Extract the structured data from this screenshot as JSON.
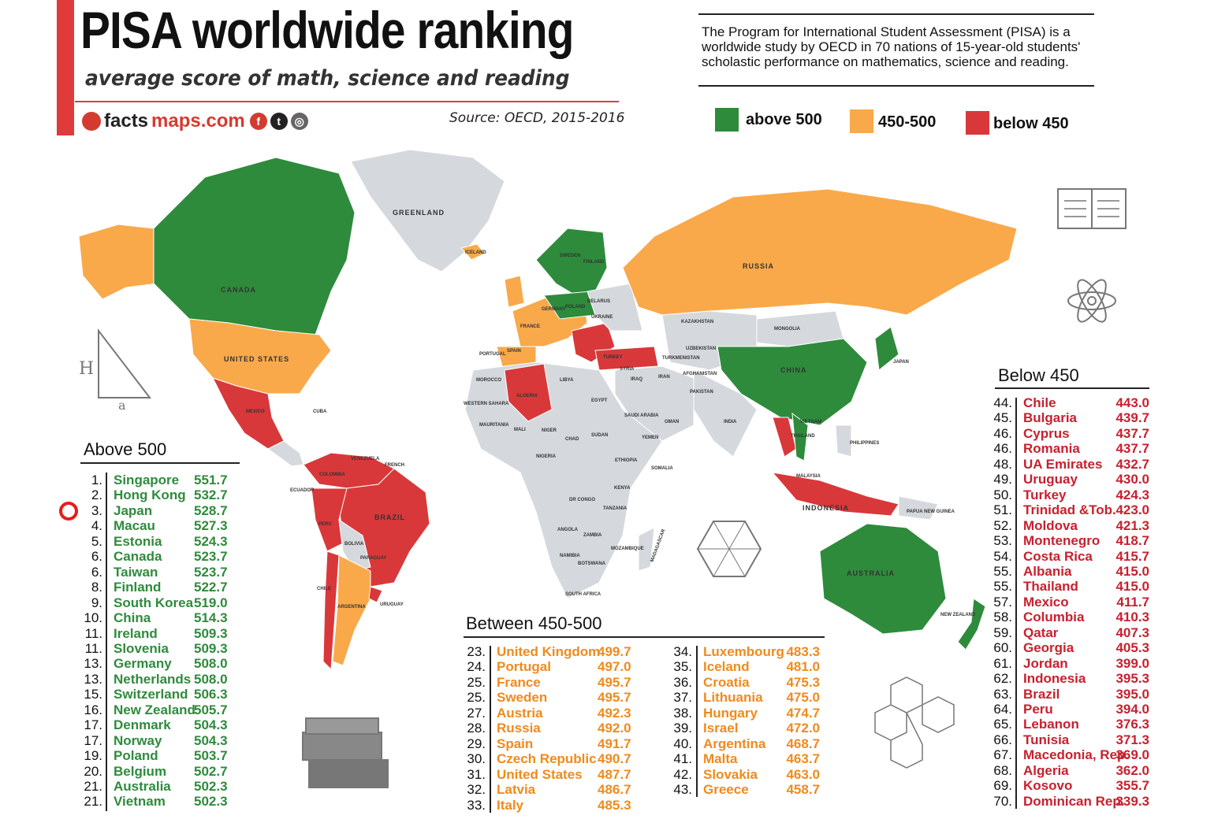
{
  "header": {
    "title": "PISA worldwide ranking",
    "subtitle": "average score of math, science and reading",
    "brand_a": "facts",
    "brand_b": "maps.com",
    "source": "Source: OECD, 2015-2016",
    "social_icons": [
      "facebook-icon",
      "twitter-icon",
      "instagram-icon"
    ]
  },
  "description": "The Program for International Student Assessment (PISA) is a worldwide study by OECD in 70 nations of 15-year-old students' scholastic performance on mathematics, science and reading.",
  "legend": [
    {
      "label": "above 500",
      "color": "#2e8b3c"
    },
    {
      "label": "450-500",
      "color": "#f9a94a"
    },
    {
      "label": "below 450",
      "color": "#d9383a"
    }
  ],
  "colors": {
    "above": "#2e8b3c",
    "between": "#f9a94a",
    "below": "#d9383a",
    "nodata": "#d5d9dd",
    "accent": "#e03a3a"
  },
  "map_labels": {
    "greenland": "GREENLAND",
    "canada": "CANADA",
    "united_states": "UNITED STATES",
    "mexico": "MEXICO",
    "cuba": "CUBA",
    "colombia": "COLOMBIA",
    "venezuela": "VENEZUELA",
    "ecuador": "ECUADOR",
    "peru": "PERU",
    "brazil": "BRAZIL",
    "bolivia": "BOLIVIA",
    "paraguay": "PARAGUAY",
    "chile": "CHILE",
    "argentina": "ARGENTINA",
    "uruguay": "URUGUAY",
    "french_guiana": "FRENCH",
    "iceland": "ICELAND",
    "sweden": "SWEDEN",
    "finland": "FINLAND",
    "russia": "RUSSIA",
    "kazakhstan": "KAZAKHSTAN",
    "mongolia": "MONGOLIA",
    "china": "CHINA",
    "japan": "JAPAN",
    "turkey": "TURKEY",
    "ukraine": "UKRAINE",
    "belarus": "BELARUS",
    "poland": "POLAND",
    "germany": "GERMANY",
    "france": "FRANCE",
    "spain": "SPAIN",
    "portugal": "PORTUGAL",
    "morocco": "MOROCCO",
    "algeria": "ALGERIA",
    "libya": "LIBYA",
    "egypt": "EGYPT",
    "mali": "MALI",
    "niger": "NIGER",
    "chad": "CHAD",
    "sudan": "SUDAN",
    "nigeria": "NIGERIA",
    "ethiopia": "ETHIOPIA",
    "somalia": "SOMALIA",
    "kenya": "KENYA",
    "dr_congo": "DR CONGO",
    "tanzania": "TANZANIA",
    "angola": "ANGOLA",
    "zambia": "ZAMBIA",
    "namibia": "NAMIBIA",
    "botswana": "BOTSWANA",
    "south_africa": "SOUTH AFRICA",
    "madagascar": "MADAGASCAR",
    "mozambique": "MOZAMBIQUE",
    "mauritania": "MAURITANIA",
    "western_sahara": "WESTERN SAHARA",
    "saudi_arabia": "SAUDI ARABIA",
    "iran": "IRAN",
    "iraq": "IRAQ",
    "syria": "SYRIA",
    "yemen": "YEMEN",
    "oman": "OMAN",
    "afghanistan": "AFGHANISTAN",
    "pakistan": "PAKISTAN",
    "india": "INDIA",
    "turkmenistan": "TURKMENISTAN",
    "uzbekistan": "UZBEKISTAN",
    "philippines": "PHILIPPINES",
    "malaysia": "MALAYSIA",
    "indonesia": "INDONESIA",
    "australia": "AUSTRALIA",
    "new_zealand": "NEW ZEALAND",
    "thailand": "THAILAND",
    "vietnam": "VIETNAM",
    "papua": "PAPUA NEW GUINEA"
  },
  "above_500": {
    "title": "Above 500",
    "rows": [
      {
        "rank": "1.",
        "name": "Singapore",
        "score": "551.7"
      },
      {
        "rank": "2.",
        "name": "Hong Kong",
        "score": "532.7"
      },
      {
        "rank": "3.",
        "name": "Japan",
        "score": "528.7"
      },
      {
        "rank": "4.",
        "name": "Macau",
        "score": "527.3"
      },
      {
        "rank": "5.",
        "name": "Estonia",
        "score": "524.3"
      },
      {
        "rank": "6.",
        "name": "Canada",
        "score": "523.7"
      },
      {
        "rank": "6.",
        "name": "Taiwan",
        "score": "523.7"
      },
      {
        "rank": "8.",
        "name": "Finland",
        "score": "522.7"
      },
      {
        "rank": "9.",
        "name": "South Korea",
        "score": "519.0"
      },
      {
        "rank": "10.",
        "name": "China",
        "score": "514.3"
      },
      {
        "rank": "11.",
        "name": "Ireland",
        "score": "509.3"
      },
      {
        "rank": "11.",
        "name": "Slovenia",
        "score": "509.3"
      },
      {
        "rank": "13.",
        "name": "Germany",
        "score": "508.0"
      },
      {
        "rank": "13.",
        "name": "Netherlands",
        "score": "508.0"
      },
      {
        "rank": "15.",
        "name": "Switzerland",
        "score": "506.3"
      },
      {
        "rank": "16.",
        "name": "New Zealand",
        "score": "505.7"
      },
      {
        "rank": "17.",
        "name": "Denmark",
        "score": "504.3"
      },
      {
        "rank": "17.",
        "name": "Norway",
        "score": "504.3"
      },
      {
        "rank": "19.",
        "name": "Poland",
        "score": "503.7"
      },
      {
        "rank": "20.",
        "name": "Belgium",
        "score": "502.7"
      },
      {
        "rank": "21.",
        "name": "Australia",
        "score": "502.3"
      },
      {
        "rank": "21.",
        "name": "Vietnam",
        "score": "502.3"
      }
    ]
  },
  "between_450_500": {
    "title": "Between 450-500",
    "left_rows": [
      {
        "rank": "23.",
        "name": "United Kingdom",
        "score": "499.7"
      },
      {
        "rank": "24.",
        "name": "Portugal",
        "score": "497.0"
      },
      {
        "rank": "25.",
        "name": "France",
        "score": "495.7"
      },
      {
        "rank": "25.",
        "name": "Sweden",
        "score": "495.7"
      },
      {
        "rank": "27.",
        "name": "Austria",
        "score": "492.3"
      },
      {
        "rank": "28.",
        "name": "Russia",
        "score": "492.0"
      },
      {
        "rank": "29.",
        "name": "Spain",
        "score": "491.7"
      },
      {
        "rank": "30.",
        "name": "Czech Republic",
        "score": "490.7"
      },
      {
        "rank": "31.",
        "name": "United States",
        "score": "487.7"
      },
      {
        "rank": "32.",
        "name": "Latvia",
        "score": "486.7"
      },
      {
        "rank": "33.",
        "name": "Italy",
        "score": "485.3"
      }
    ],
    "right_rows": [
      {
        "rank": "34.",
        "name": "Luxembourg",
        "score": "483.3"
      },
      {
        "rank": "35.",
        "name": "Iceland",
        "score": "481.0"
      },
      {
        "rank": "36.",
        "name": "Croatia",
        "score": "475.3"
      },
      {
        "rank": "37.",
        "name": "Lithuania",
        "score": "475.0"
      },
      {
        "rank": "38.",
        "name": "Hungary",
        "score": "474.7"
      },
      {
        "rank": "39.",
        "name": "Israel",
        "score": "472.0"
      },
      {
        "rank": "40.",
        "name": "Argentina",
        "score": "468.7"
      },
      {
        "rank": "41.",
        "name": "Malta",
        "score": "463.7"
      },
      {
        "rank": "42.",
        "name": "Slovakia",
        "score": "463.0"
      },
      {
        "rank": "43.",
        "name": "Greece",
        "score": "458.7"
      }
    ]
  },
  "below_450": {
    "title": "Below 450",
    "rows": [
      {
        "rank": "44.",
        "name": "Chile",
        "score": "443.0"
      },
      {
        "rank": "45.",
        "name": "Bulgaria",
        "score": "439.7"
      },
      {
        "rank": "46.",
        "name": "Cyprus",
        "score": "437.7"
      },
      {
        "rank": "46.",
        "name": "Romania",
        "score": "437.7"
      },
      {
        "rank": "48.",
        "name": "UA Emirates",
        "score": "432.7"
      },
      {
        "rank": "49.",
        "name": "Uruguay",
        "score": "430.0"
      },
      {
        "rank": "50.",
        "name": "Turkey",
        "score": "424.3"
      },
      {
        "rank": "51.",
        "name": "Trinidad &Tob.",
        "score": "423.0"
      },
      {
        "rank": "52.",
        "name": "Moldova",
        "score": "421.3"
      },
      {
        "rank": "53.",
        "name": "Montenegro",
        "score": "418.7"
      },
      {
        "rank": "54.",
        "name": "Costa Rica",
        "score": "415.7"
      },
      {
        "rank": "55.",
        "name": "Albania",
        "score": "415.0"
      },
      {
        "rank": "55.",
        "name": "Thailand",
        "score": "415.0"
      },
      {
        "rank": "57.",
        "name": "Mexico",
        "score": "411.7"
      },
      {
        "rank": "58.",
        "name": "Columbia",
        "score": "410.3"
      },
      {
        "rank": "59.",
        "name": "Qatar",
        "score": "407.3"
      },
      {
        "rank": "60.",
        "name": "Georgia",
        "score": "405.3"
      },
      {
        "rank": "61.",
        "name": "Jordan",
        "score": "399.0"
      },
      {
        "rank": "62.",
        "name": "Indonesia",
        "score": "395.3"
      },
      {
        "rank": "63.",
        "name": "Brazil",
        "score": "395.0"
      },
      {
        "rank": "64.",
        "name": "Peru",
        "score": "394.0"
      },
      {
        "rank": "65.",
        "name": "Lebanon",
        "score": "376.3"
      },
      {
        "rank": "66.",
        "name": "Tunisia",
        "score": "371.3"
      },
      {
        "rank": "67.",
        "name": "Macedonia, Rep.",
        "score": "369.0"
      },
      {
        "rank": "68.",
        "name": "Algeria",
        "score": "362.0"
      },
      {
        "rank": "69.",
        "name": "Kosovo",
        "score": "355.7"
      },
      {
        "rank": "70.",
        "name": "Dominican Rep.",
        "score": "339.3"
      }
    ]
  },
  "decorations": [
    "triangle-sketch-icon",
    "open-book-icon",
    "atom-icon",
    "hexagon-sketch-icon",
    "molecule-icon",
    "books-stack-icon"
  ]
}
